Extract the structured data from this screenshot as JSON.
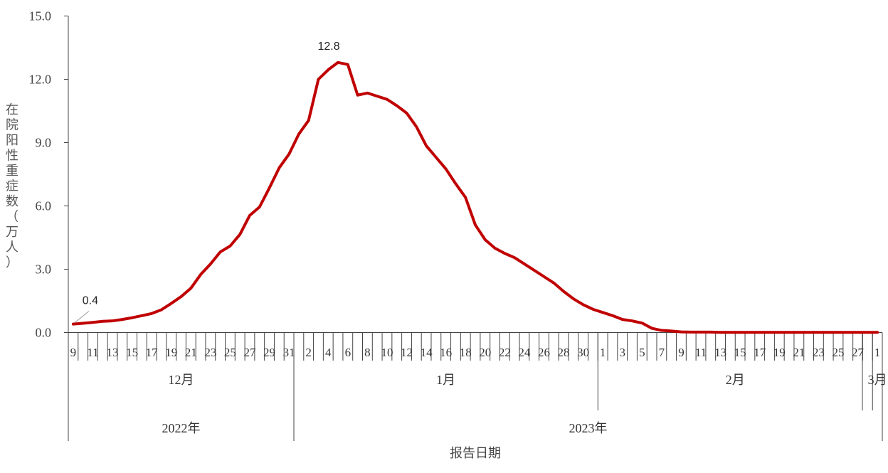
{
  "chart_data": {
    "type": "line",
    "ylabel": "在院阳性重症数（万人）",
    "xlabel": "报告日期",
    "ylim": [
      0,
      15
    ],
    "yticks": [
      "0.0",
      "3.0",
      "6.0",
      "9.0",
      "12.0",
      "15.0"
    ],
    "grid": false,
    "color": "#C00000",
    "annotations": [
      {
        "text": "12.8",
        "date": "2023-01-05",
        "value": 12.8
      },
      {
        "text": "0.4",
        "date": "2022-12-09",
        "value": 0.4
      }
    ],
    "months": [
      {
        "label": "12月",
        "start": "2022-12-09",
        "end": "2022-12-31"
      },
      {
        "label": "1月",
        "start": "2023-01-01",
        "end": "2023-01-31"
      },
      {
        "label": "2月",
        "start": "2023-02-01",
        "end": "2023-02-28"
      },
      {
        "label": "3月",
        "start": "2023-03-01",
        "end": "2023-03-01"
      }
    ],
    "years": [
      {
        "label": "2022年",
        "start": "2022-12-09",
        "end": "2022-12-31"
      },
      {
        "label": "2023年",
        "start": "2023-01-01",
        "end": "2023-03-01"
      }
    ],
    "series": [
      {
        "x": [
          "2022-12-09",
          "2022-12-10",
          "2022-12-11",
          "2022-12-12",
          "2022-12-13",
          "2022-12-14",
          "2022-12-15",
          "2022-12-16",
          "2022-12-17",
          "2022-12-18",
          "2022-12-19",
          "2022-12-20",
          "2022-12-21",
          "2022-12-22",
          "2022-12-23",
          "2022-12-24",
          "2022-12-25",
          "2022-12-26",
          "2022-12-27",
          "2022-12-28",
          "2022-12-29",
          "2022-12-30",
          "2022-12-31",
          "2023-01-01",
          "2023-01-02",
          "2023-01-03",
          "2023-01-04",
          "2023-01-05",
          "2023-01-06",
          "2023-01-07",
          "2023-01-08",
          "2023-01-09",
          "2023-01-10",
          "2023-01-11",
          "2023-01-12",
          "2023-01-13",
          "2023-01-14",
          "2023-01-15",
          "2023-01-16",
          "2023-01-17",
          "2023-01-18",
          "2023-01-19",
          "2023-01-20",
          "2023-01-21",
          "2023-01-22",
          "2023-01-23",
          "2023-01-24",
          "2023-01-25",
          "2023-01-26",
          "2023-01-27",
          "2023-01-28",
          "2023-01-29",
          "2023-01-30",
          "2023-01-31",
          "2023-02-01",
          "2023-02-02",
          "2023-02-03",
          "2023-02-04",
          "2023-02-05",
          "2023-02-06",
          "2023-02-07",
          "2023-02-08",
          "2023-02-09",
          "2023-02-10",
          "2023-02-11",
          "2023-02-12",
          "2023-02-13",
          "2023-02-14",
          "2023-02-15",
          "2023-02-16",
          "2023-02-17",
          "2023-02-18",
          "2023-02-19",
          "2023-02-20",
          "2023-02-21",
          "2023-02-22",
          "2023-02-23",
          "2023-02-24",
          "2023-02-25",
          "2023-02-26",
          "2023-02-27",
          "2023-02-28",
          "2023-03-01"
        ],
        "values": [
          0.4,
          0.44,
          0.48,
          0.53,
          0.55,
          0.62,
          0.7,
          0.8,
          0.9,
          1.08,
          1.38,
          1.7,
          2.1,
          2.75,
          3.25,
          3.82,
          4.1,
          4.65,
          5.55,
          5.95,
          6.85,
          7.8,
          8.45,
          9.4,
          10.05,
          12.0,
          12.45,
          12.8,
          12.7,
          11.25,
          11.35,
          11.2,
          11.05,
          10.75,
          10.4,
          9.75,
          8.85,
          8.3,
          7.75,
          7.05,
          6.4,
          5.1,
          4.4,
          4.0,
          3.75,
          3.55,
          3.25,
          2.95,
          2.65,
          2.35,
          1.95,
          1.6,
          1.32,
          1.1,
          0.95,
          0.8,
          0.62,
          0.55,
          0.45,
          0.2,
          0.1,
          0.07,
          0.03,
          0.02,
          0.02,
          0.02,
          0.01,
          0.01,
          0.01,
          0.01,
          0.01,
          0.01,
          0.01,
          0.01,
          0.01,
          0.01,
          0.01,
          0.01,
          0.01,
          0.01,
          0.01,
          0.01,
          0.01
        ]
      }
    ]
  }
}
